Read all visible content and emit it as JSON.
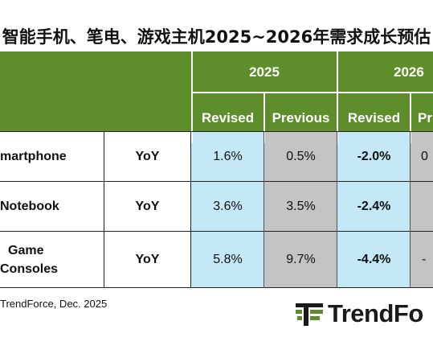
{
  "title": "智能手机、笔电、游戏主机2025~2026年需求成长预估",
  "header": {
    "years": [
      "2025",
      "2026"
    ],
    "subcolumns": [
      "Revised",
      "Previous",
      "Revised",
      "Pr"
    ]
  },
  "rows": [
    {
      "product": "martphone",
      "metric": "YoY",
      "v2025_revised": "1.6%",
      "v2025_previous": "0.5%",
      "v2026_revised": "-2.0%",
      "v2026_previous": "0"
    },
    {
      "product": "Notebook",
      "metric": "YoY",
      "v2025_revised": "3.6%",
      "v2025_previous": "3.5%",
      "v2026_revised": "-2.4%",
      "v2026_previous": ""
    },
    {
      "product_line1": "Game",
      "product_line2": "Consoles",
      "metric": "YoY",
      "v2025_revised": "5.8%",
      "v2025_previous": "9.7%",
      "v2026_revised": "-4.4%",
      "v2026_previous": "-"
    }
  ],
  "source": "TrendForce, Dec. 2025",
  "logo": {
    "text": "TrendFo",
    "icon": "trendforce-logo-icon"
  },
  "colors": {
    "header_green": "#5e8e2b",
    "revised_blue": "#c5e8f7",
    "previous_grey": "#c4c4c4"
  }
}
